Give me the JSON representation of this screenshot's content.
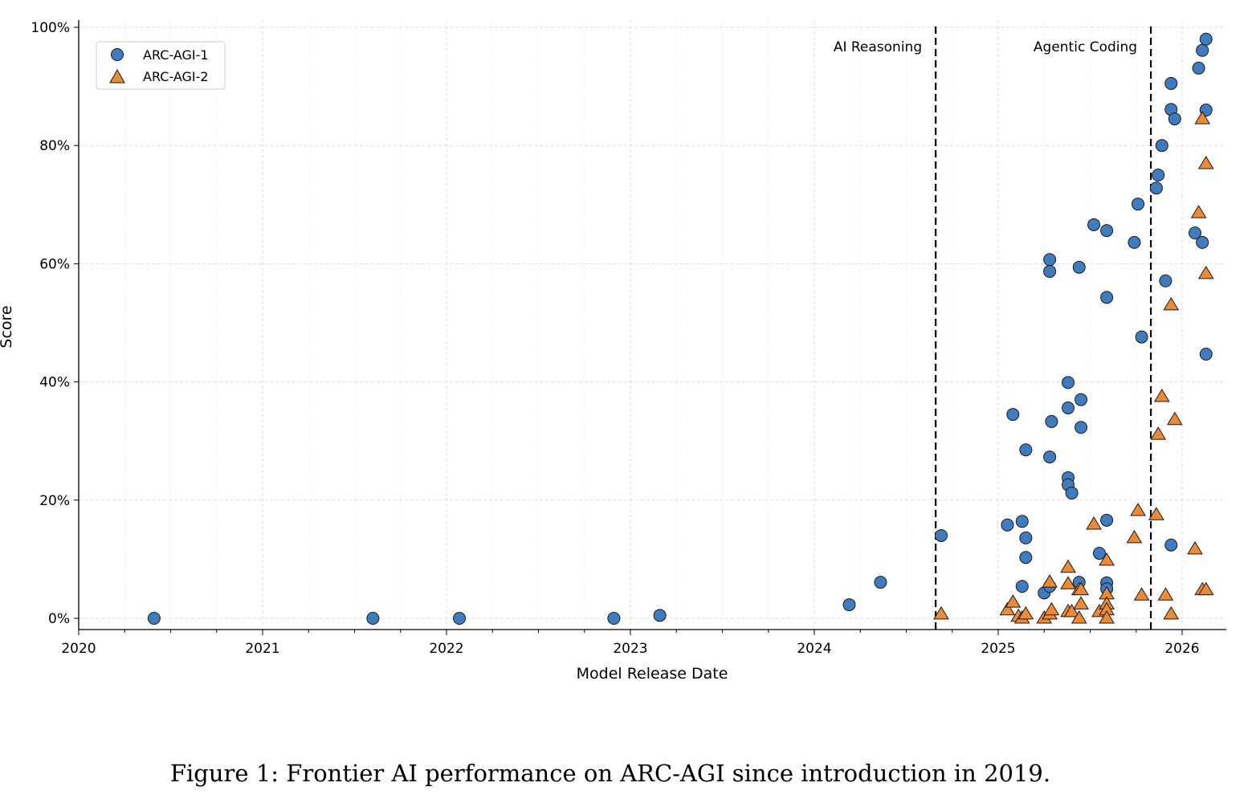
{
  "chart_data": {
    "type": "scatter",
    "xlabel": "Model Release Date",
    "ylabel": "Score",
    "xlim": [
      2020,
      2026.25
    ],
    "ylim": [
      -2,
      101
    ],
    "x_ticks": [
      2020,
      2021,
      2022,
      2023,
      2024,
      2025,
      2026
    ],
    "x_tick_labels": [
      "2020",
      "2021",
      "2022",
      "2023",
      "2024",
      "2025",
      "2026"
    ],
    "y_ticks": [
      0,
      20,
      40,
      60,
      80,
      100
    ],
    "y_tick_labels": [
      "0%",
      "20%",
      "40%",
      "60%",
      "80%",
      "100%"
    ],
    "grid": true,
    "legend_position": "top-left",
    "annotations": [
      {
        "label": "AI Reasoning",
        "x": 2024.66
      },
      {
        "label": "Agentic Coding",
        "x": 2025.83
      }
    ],
    "series": [
      {
        "name": "ARC-AGI-1",
        "marker": "circle",
        "color": "#3f7cbf",
        "points": [
          [
            2020.41,
            0
          ],
          [
            2021.6,
            0
          ],
          [
            2022.07,
            0
          ],
          [
            2022.91,
            0
          ],
          [
            2023.16,
            0.5
          ],
          [
            2024.19,
            2.3
          ],
          [
            2024.36,
            6.1
          ],
          [
            2024.69,
            14.0
          ],
          [
            2025.05,
            15.8
          ],
          [
            2025.08,
            34.5
          ],
          [
            2025.13,
            16.4
          ],
          [
            2025.13,
            5.4
          ],
          [
            2025.15,
            28.5
          ],
          [
            2025.15,
            13.6
          ],
          [
            2025.15,
            10.3
          ],
          [
            2025.25,
            4.3
          ],
          [
            2025.28,
            5.4
          ],
          [
            2025.28,
            60.7
          ],
          [
            2025.28,
            58.7
          ],
          [
            2025.29,
            33.3
          ],
          [
            2025.28,
            27.3
          ],
          [
            2025.38,
            39.9
          ],
          [
            2025.38,
            35.6
          ],
          [
            2025.38,
            23.8
          ],
          [
            2025.38,
            22.6
          ],
          [
            2025.4,
            21.2
          ],
          [
            2025.44,
            59.4
          ],
          [
            2025.44,
            6.1
          ],
          [
            2025.45,
            37.0
          ],
          [
            2025.45,
            32.3
          ],
          [
            2025.52,
            66.6
          ],
          [
            2025.55,
            11.0
          ],
          [
            2025.59,
            65.6
          ],
          [
            2025.59,
            54.3
          ],
          [
            2025.59,
            16.6
          ],
          [
            2025.59,
            6.0
          ],
          [
            2025.59,
            5.0
          ],
          [
            2025.74,
            63.6
          ],
          [
            2025.76,
            70.1
          ],
          [
            2025.78,
            47.6
          ],
          [
            2025.86,
            72.8
          ],
          [
            2025.87,
            75.0
          ],
          [
            2025.89,
            80.0
          ],
          [
            2025.91,
            57.1
          ],
          [
            2025.94,
            90.5
          ],
          [
            2025.94,
            86.1
          ],
          [
            2025.96,
            84.5
          ],
          [
            2025.94,
            12.4
          ],
          [
            2026.07,
            65.2
          ],
          [
            2026.09,
            93.1
          ],
          [
            2026.11,
            96.1
          ],
          [
            2026.11,
            63.6
          ],
          [
            2026.13,
            86.0
          ],
          [
            2026.13,
            98.0
          ],
          [
            2026.13,
            44.7
          ]
        ]
      },
      {
        "name": "ARC-AGI-2",
        "marker": "triangle",
        "color": "#ee8a35",
        "points": [
          [
            2024.69,
            0.7
          ],
          [
            2025.05,
            1.4
          ],
          [
            2025.08,
            2.7
          ],
          [
            2025.11,
            0.3
          ],
          [
            2025.13,
            0
          ],
          [
            2025.15,
            0.7
          ],
          [
            2025.25,
            0
          ],
          [
            2025.28,
            0.7
          ],
          [
            2025.28,
            6.1
          ],
          [
            2025.29,
            1.4
          ],
          [
            2025.38,
            8.6
          ],
          [
            2025.38,
            5.8
          ],
          [
            2025.38,
            1.1
          ],
          [
            2025.4,
            1.1
          ],
          [
            2025.44,
            0
          ],
          [
            2025.44,
            4.8
          ],
          [
            2025.45,
            4.8
          ],
          [
            2025.45,
            2.4
          ],
          [
            2025.52,
            15.9
          ],
          [
            2025.55,
            1.1
          ],
          [
            2025.59,
            9.8
          ],
          [
            2025.59,
            4.1
          ],
          [
            2025.59,
            2.4
          ],
          [
            2025.59,
            1.4
          ],
          [
            2025.59,
            0
          ],
          [
            2025.74,
            13.6
          ],
          [
            2025.76,
            18.2
          ],
          [
            2025.78,
            3.9
          ],
          [
            2025.86,
            17.5
          ],
          [
            2025.87,
            31.1
          ],
          [
            2025.89,
            37.5
          ],
          [
            2025.91,
            3.9
          ],
          [
            2025.94,
            53.0
          ],
          [
            2025.94,
            0.7
          ],
          [
            2025.96,
            33.6
          ],
          [
            2026.07,
            11.7
          ],
          [
            2026.09,
            68.6
          ],
          [
            2026.11,
            84.5
          ],
          [
            2026.11,
            4.8
          ],
          [
            2026.13,
            58.3
          ],
          [
            2026.13,
            76.9
          ],
          [
            2026.13,
            4.8
          ]
        ]
      }
    ]
  },
  "caption": "Figure 1: Frontier AI performance on ARC-AGI since introduction in 2019."
}
